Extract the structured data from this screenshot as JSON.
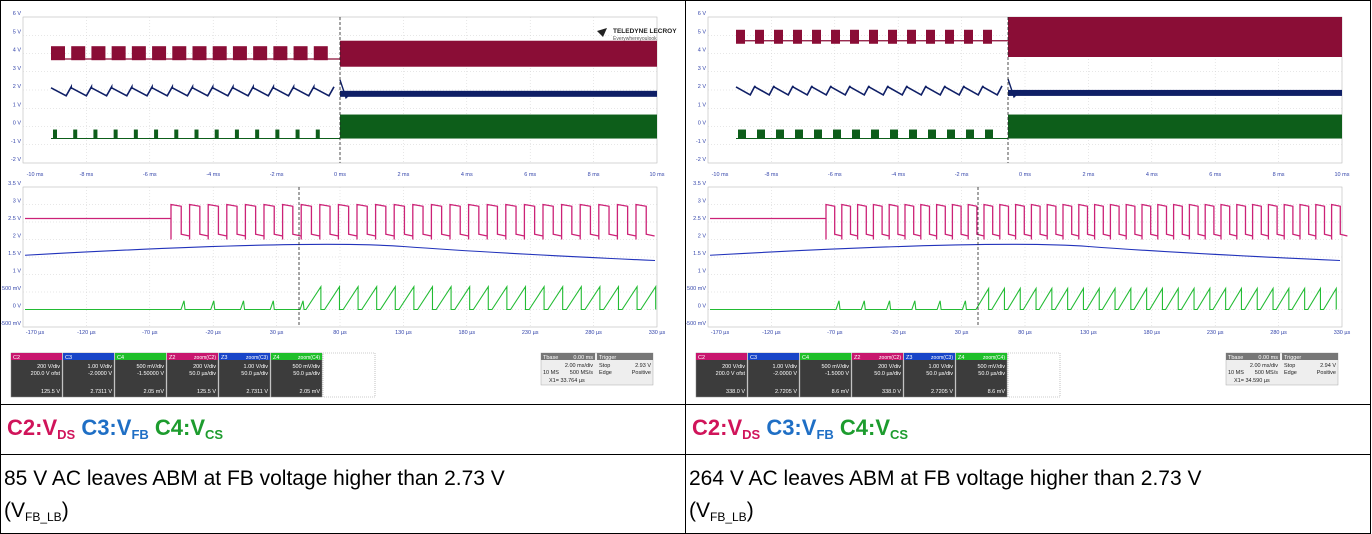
{
  "panels": [
    {
      "brand": "TELEDYNE LECROY",
      "tagline": "Everywhereyoulook",
      "top_y_labels": [
        "6 V",
        "5 V",
        "4 V",
        "3 V",
        "2 V",
        "1 V",
        "0 V",
        "-1 V",
        "-2 V"
      ],
      "top_x_labels": [
        "-10 ms",
        "-8 ms",
        "-6 ms",
        "-4 ms",
        "-2 ms",
        "0 ms",
        "2 ms",
        "4 ms",
        "6 ms",
        "8 ms",
        "10 ms"
      ],
      "bot_y_labels": [
        "3.5 V",
        "3 V",
        "2.5 V",
        "2 V",
        "1.5 V",
        "1 V",
        "500 mV",
        "0 V",
        "-500 mV"
      ],
      "bot_x_labels": [
        "-170 µs",
        "-120 µs",
        "-70 µs",
        "-20 µs",
        "30 µs",
        "80 µs",
        "130 µs",
        "180 µs",
        "230 µs",
        "280 µs",
        "330 µs"
      ],
      "channels": [
        {
          "tag": "C2",
          "title": "",
          "l1": "200 V/div",
          "l2": "200.0 V ofst",
          "val": "125.5 V",
          "color": "#c8166e"
        },
        {
          "tag": "C3",
          "title": "",
          "l1": "1.00 V/div",
          "l2": "-2.0000 V",
          "val": "2.7311 V",
          "color": "#1845c8"
        },
        {
          "tag": "C4",
          "title": "",
          "l1": "500 mV/div",
          "l2": "-1.50000 V",
          "val": "2.05 mV",
          "color": "#1fbf2a"
        },
        {
          "tag": "Z2",
          "title": "zoom(C2)",
          "l1": "200 V/div",
          "l2": "50.0 µs/div",
          "val": "125.5 V",
          "color": "#c8166e"
        },
        {
          "tag": "Z3",
          "title": "zoom(C3)",
          "l1": "1.00 V/div",
          "l2": "50.0 µs/div",
          "val": "2.7311 V",
          "color": "#1845c8"
        },
        {
          "tag": "Z4",
          "title": "zoom(C4)",
          "l1": "500 mV/div",
          "l2": "50.0 µs/div",
          "val": "2.05 mV",
          "color": "#1fbf2a"
        }
      ],
      "tbase": {
        "label": "Tbase",
        "offset": "0.00 ms",
        "trigger": "Trigger",
        "rate1": "2.00 ms/div",
        "rate2": "500 MS/s",
        "samples": "10 MS",
        "mode": "Stop",
        "type": "Edge",
        "level": "2.93 V",
        "slope": "Positive",
        "cursor": "X1= 33.764 µs"
      },
      "caption": {
        "c2": "C2:V",
        "c2_sub": "DS",
        "c3": "C3:V",
        "c3_sub": "FB",
        "c4": "C4:V",
        "c4_sub": "CS"
      },
      "desc": {
        "text": "85 V AC leaves ABM at FB voltage higher than 2.73 V",
        "paren_open": "(V",
        "sub": "FB_LB",
        "paren_close": ")"
      }
    },
    {
      "brand": "",
      "tagline": "",
      "top_y_labels": [
        "6 V",
        "5 V",
        "4 V",
        "3 V",
        "2 V",
        "1 V",
        "0 V",
        "-1 V",
        "-2 V"
      ],
      "top_x_labels": [
        "-10 ms",
        "-8 ms",
        "-6 ms",
        "-4 ms",
        "-2 ms",
        "0 ms",
        "2 ms",
        "4 ms",
        "6 ms",
        "8 ms",
        "10 ms"
      ],
      "bot_y_labels": [
        "3.5 V",
        "3 V",
        "2.5 V",
        "2 V",
        "1.5 V",
        "1 V",
        "500 mV",
        "0 V",
        "-500 mV"
      ],
      "bot_x_labels": [
        "-170 µs",
        "-120 µs",
        "-70 µs",
        "-20 µs",
        "30 µs",
        "80 µs",
        "130 µs",
        "180 µs",
        "230 µs",
        "280 µs",
        "330 µs"
      ],
      "channels": [
        {
          "tag": "C2",
          "title": "",
          "l1": "200 V/div",
          "l2": "200.0 V ofst",
          "val": "338.0 V",
          "color": "#c8166e"
        },
        {
          "tag": "C3",
          "title": "",
          "l1": "1.00 V/div",
          "l2": "-2.0000 V",
          "val": "2.7205 V",
          "color": "#1845c8"
        },
        {
          "tag": "C4",
          "title": "",
          "l1": "500 mV/div",
          "l2": "-1.5000 V",
          "val": "8.6 mV",
          "color": "#1fbf2a"
        },
        {
          "tag": "Z2",
          "title": "zoom(C2)",
          "l1": "200 V/div",
          "l2": "50.0 µs/div",
          "val": "338.0 V",
          "color": "#c8166e"
        },
        {
          "tag": "Z3",
          "title": "zoom(C3)",
          "l1": "1.00 V/div",
          "l2": "50.0 µs/div",
          "val": "2.7205 V",
          "color": "#1845c8"
        },
        {
          "tag": "Z4",
          "title": "zoom(C4)",
          "l1": "500 mV/div",
          "l2": "50.0 µs/div",
          "val": "8.6 mV",
          "color": "#1fbf2a"
        }
      ],
      "tbase": {
        "label": "Tbase",
        "offset": "0.00 ms",
        "trigger": "Trigger",
        "rate1": "2.00 ms/div",
        "rate2": "500 MS/s",
        "samples": "10 MS",
        "mode": "Stop",
        "type": "Edge",
        "level": "2.94 V",
        "slope": "Positive",
        "cursor": "X1= 34.590 µs"
      },
      "caption": {
        "c2": "C2:V",
        "c2_sub": "DS",
        "c3": "C3:V",
        "c3_sub": "FB",
        "c4": "C4:V",
        "c4_sub": "CS"
      },
      "desc": {
        "text": "264 V AC leaves ABM at FB voltage higher than 2.73 V",
        "paren_open": "(V",
        "sub": "FB_LB",
        "paren_close": ")"
      }
    }
  ],
  "colors": {
    "trace_ds": "#8a0d36",
    "trace_fb": "#0f1f66",
    "trace_cs": "#0d5e1a",
    "zoom_ds": "#cc2277",
    "zoom_fb": "#2233bb",
    "zoom_cs": "#22bb33",
    "grid": "#cfcfcf",
    "axis_text": "#333333"
  }
}
